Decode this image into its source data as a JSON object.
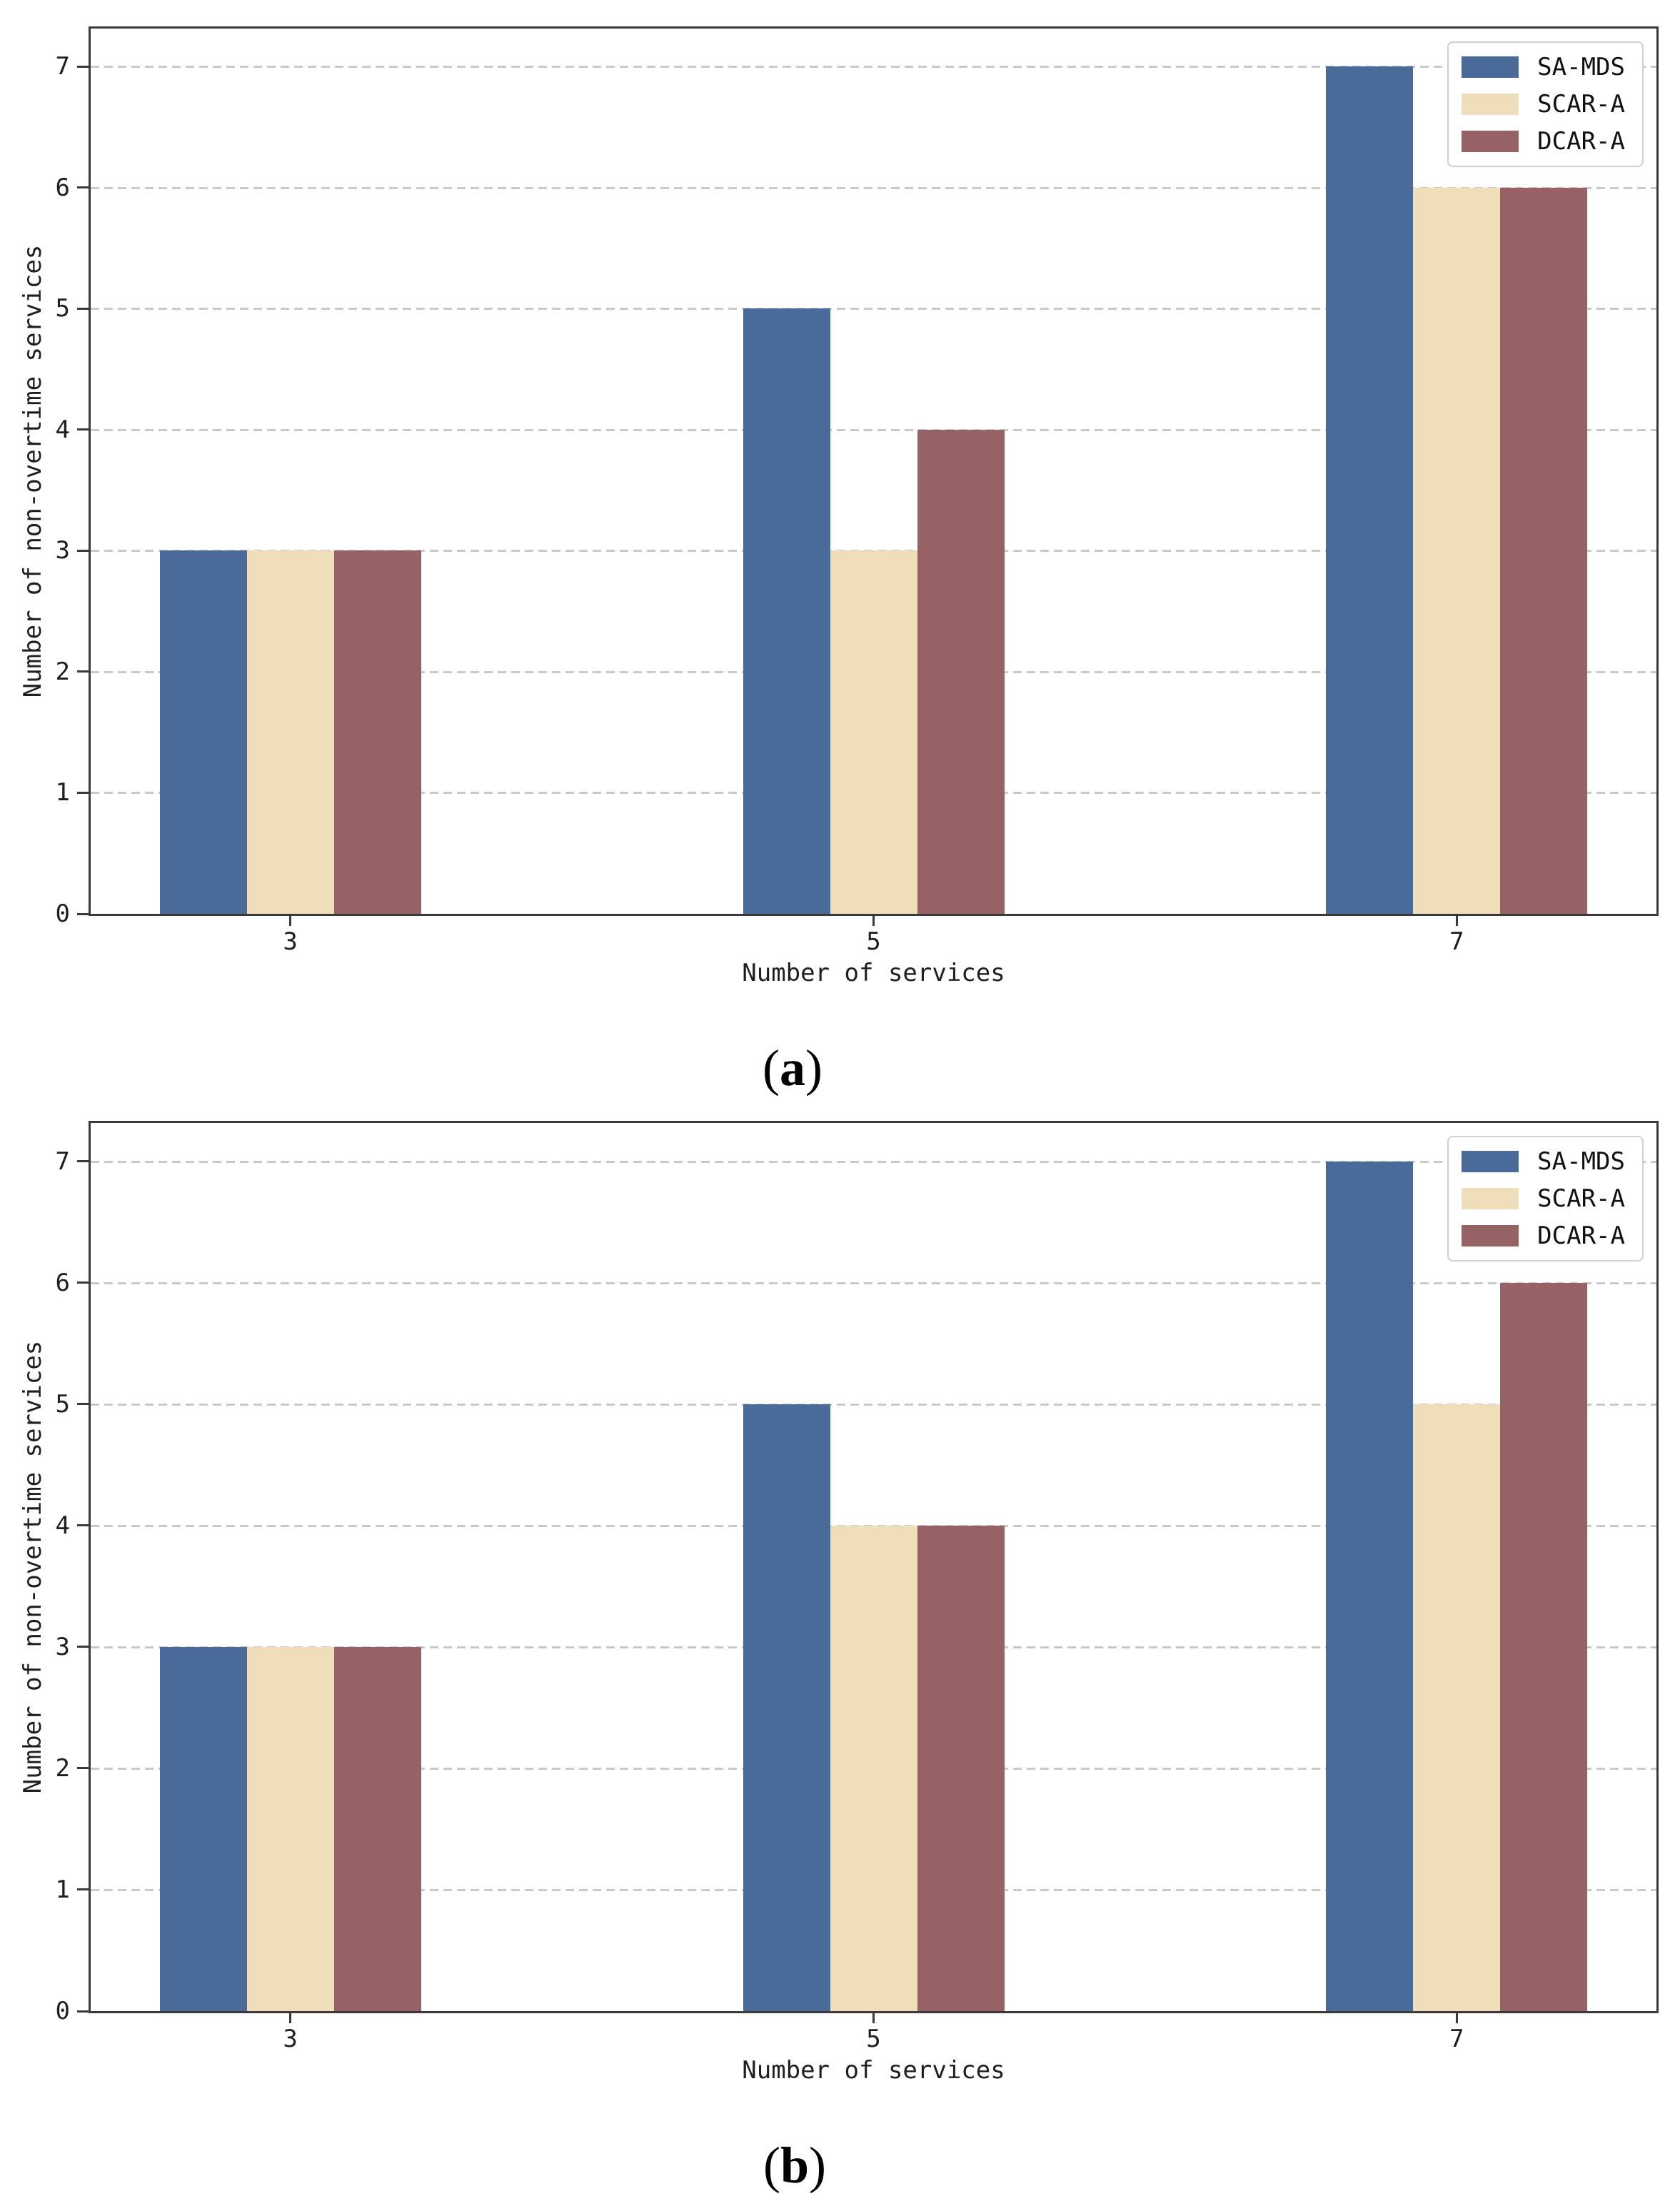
{
  "page": {
    "background": "#ffffff"
  },
  "style": {
    "axis_color": "#3a3a3a",
    "grid_color": "#c9c9c9",
    "text_color": "#1f1f1f",
    "legend_border_color": "#d0d0d0",
    "series_colors": {
      "SA-MDS": "#4a6a99",
      "SCAR-A": "#f0ddba",
      "DCAR-A": "#966265"
    }
  },
  "chart_data": [
    {
      "type": "bar",
      "panel_label": "(a)",
      "title": "",
      "xlabel": "Number of services",
      "ylabel": "Number of non-overtime services",
      "categories": [
        "3",
        "5",
        "7"
      ],
      "ytick_labels": [
        "0",
        "1",
        "2",
        "3",
        "4",
        "5",
        "6",
        "7"
      ],
      "ylim": [
        0,
        7.35
      ],
      "grid": true,
      "legend_position": "upper right",
      "legend_entries": [
        "SA-MDS",
        "SCAR-A",
        "DCAR-A"
      ],
      "series": [
        {
          "name": "SA-MDS",
          "color": "#4a6a99",
          "values": [
            3,
            5,
            7
          ]
        },
        {
          "name": "SCAR-A",
          "color": "#f0ddba",
          "values": [
            3,
            3,
            6
          ]
        },
        {
          "name": "DCAR-A",
          "color": "#966265",
          "values": [
            3,
            4,
            6
          ]
        }
      ]
    },
    {
      "type": "bar",
      "panel_label": "(b)",
      "title": "",
      "xlabel": "Number of services",
      "ylabel": "Number of non-overtime services",
      "categories": [
        "3",
        "5",
        "7"
      ],
      "ytick_labels": [
        "0",
        "1",
        "2",
        "3",
        "4",
        "5",
        "6",
        "7"
      ],
      "ylim": [
        0,
        7.35
      ],
      "grid": true,
      "legend_position": "upper right",
      "legend_entries": [
        "SA-MDS",
        "SCAR-A",
        "DCAR-A"
      ],
      "series": [
        {
          "name": "SA-MDS",
          "color": "#4a6a99",
          "values": [
            3,
            5,
            7
          ]
        },
        {
          "name": "SCAR-A",
          "color": "#f0ddba",
          "values": [
            3,
            4,
            5
          ]
        },
        {
          "name": "DCAR-A",
          "color": "#966265",
          "values": [
            3,
            4,
            6
          ]
        }
      ]
    }
  ]
}
